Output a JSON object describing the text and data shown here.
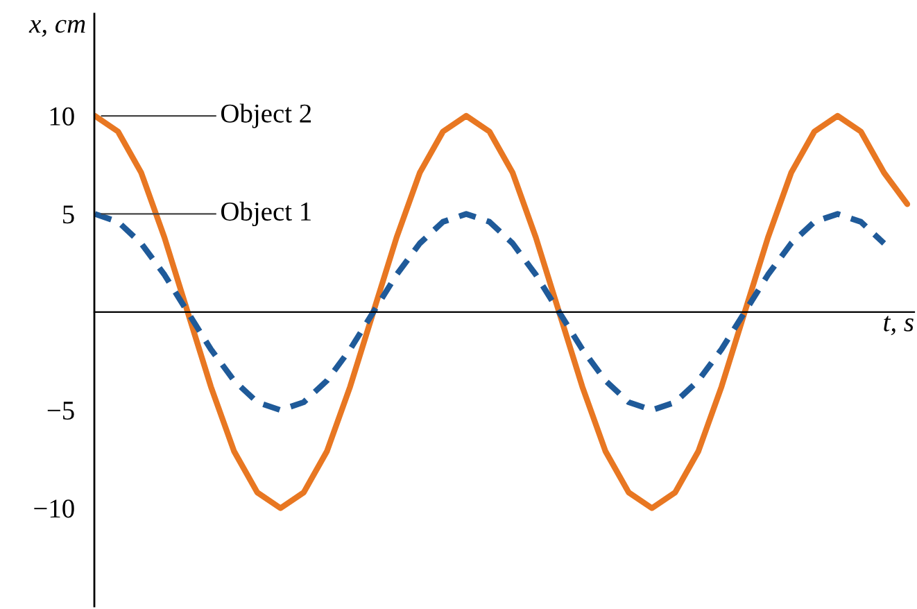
{
  "chart_data": {
    "type": "line",
    "ylabel": "x, cm",
    "xlabel": "t, s",
    "categories": [
      null,
      null,
      null,
      null,
      null,
      null,
      null,
      null,
      null,
      null,
      null,
      null,
      null,
      null,
      null,
      null,
      null,
      null,
      null,
      null,
      null,
      null,
      null,
      null,
      null,
      null,
      null,
      null,
      null,
      null,
      null,
      null,
      null,
      null,
      null,
      null
    ],
    "series": [
      {
        "color": "#e87722",
        "line_style": "solid",
        "values": [
          10,
          9.2,
          7.1,
          3.8,
          0,
          -3.8,
          -7.1,
          -9.2,
          -10,
          -9.2,
          -7.1,
          -3.8,
          0,
          3.8,
          7.1,
          9.2,
          10,
          9.2,
          7.1,
          3.8,
          0,
          -3.8,
          -7.1,
          -9.2,
          -10,
          -9.2,
          -7.1,
          -3.8,
          0,
          3.8,
          7.1,
          9.2,
          10,
          9.2,
          7.1,
          5.5
        ]
      },
      {
        "color": "#1f5a99",
        "line_style": "dashed",
        "values": [
          5,
          4.6,
          3.5,
          1.9,
          0,
          -1.9,
          -3.5,
          -4.6,
          -5,
          -4.6,
          -3.5,
          -1.9,
          0,
          1.9,
          3.5,
          4.6,
          5,
          4.6,
          3.5,
          1.9,
          0,
          -1.9,
          -3.5,
          -4.6,
          -5,
          -4.6,
          -3.5,
          -1.9,
          0,
          1.9,
          3.5,
          4.6,
          5,
          4.6,
          3.5,
          null
        ]
      }
    ],
    "annotations": [
      "Object 2",
      "Object 1"
    ],
    "ylim": [
      -15,
      15.2
    ],
    "yticks": [
      10,
      5,
      {
        "value": -5,
        "label": "−5"
      },
      {
        "value": -10,
        "label": "−10"
      }
    ],
    "tick_labels": "y",
    "grid": false,
    "legend": false,
    "marker": "none"
  }
}
